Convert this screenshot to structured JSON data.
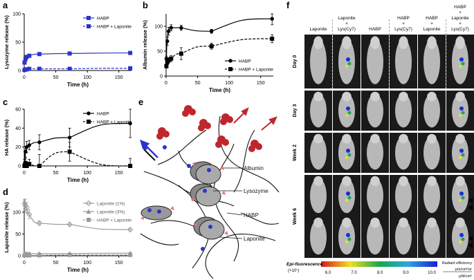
{
  "panels": {
    "a": {
      "label": "a"
    },
    "b": {
      "label": "b"
    },
    "c": {
      "label": "c"
    },
    "d": {
      "label": "d"
    },
    "e": {
      "label": "e"
    },
    "f": {
      "label": "f"
    }
  },
  "chart_data": [
    {
      "id": "a",
      "type": "line",
      "ylabel": "Lysozyme release (%)",
      "xlabel": "Time (h)",
      "xlim": [
        0,
        170
      ],
      "ylim": [
        0,
        100
      ],
      "xticks": [
        "0",
        "50",
        "100",
        "150"
      ],
      "yticks": [
        "0",
        "50",
        "100"
      ],
      "legend_position": "top-right",
      "colors": {
        "primary": "#2b35c9"
      },
      "series": [
        {
          "name": "HABP",
          "style": "solid",
          "color": "#2b35c9",
          "points": [
            [
              0.5,
              14
            ],
            [
              2,
              20
            ],
            [
              4,
              24
            ],
            [
              8,
              26
            ],
            [
              24,
              29
            ],
            [
              72,
              30
            ],
            [
              168,
              31
            ]
          ]
        },
        {
          "name": "HABP + Laponite",
          "style": "dashed",
          "color": "#2b35c9",
          "points": [
            [
              0.5,
              1
            ],
            [
              2,
              2
            ],
            [
              4,
              2
            ],
            [
              8,
              3
            ],
            [
              24,
              3
            ],
            [
              72,
              3
            ],
            [
              168,
              4
            ]
          ]
        }
      ]
    },
    {
      "id": "b",
      "type": "line",
      "ylabel": "Albumin release (%)",
      "xlabel": "Time (h)",
      "xlim": [
        0,
        170
      ],
      "ylim": [
        0,
        125
      ],
      "xticks": [
        "0",
        "50",
        "100",
        "150"
      ],
      "yticks": [
        "0",
        "50",
        "100"
      ],
      "legend_position": "bottom-right",
      "series": [
        {
          "name": "HABP",
          "style": "solid",
          "color": "#000000",
          "points": [
            [
              0.5,
              35
            ],
            [
              2,
              70
            ],
            [
              4,
              90
            ],
            [
              8,
              97
            ],
            [
              24,
              97
            ],
            [
              72,
              90
            ],
            [
              168,
              115
            ]
          ],
          "errors": [
            5,
            8,
            8,
            6,
            5,
            4,
            12
          ]
        },
        {
          "name": "HABP + Laponite",
          "style": "dashed",
          "color": "#000000",
          "points": [
            [
              0.5,
              20
            ],
            [
              2,
              28
            ],
            [
              4,
              32
            ],
            [
              8,
              35
            ],
            [
              24,
              45
            ],
            [
              72,
              60
            ],
            [
              168,
              75
            ]
          ],
          "errors": [
            4,
            5,
            5,
            6,
            12,
            6,
            8
          ]
        }
      ]
    },
    {
      "id": "c",
      "type": "line",
      "ylabel": "HA release (%)",
      "xlabel": "Time (h)",
      "xlim": [
        0,
        170
      ],
      "ylim": [
        0,
        60
      ],
      "xticks": [
        "0",
        "50",
        "100",
        "150"
      ],
      "yticks": [
        "0",
        "20",
        "40",
        "60"
      ],
      "legend_position": "top-right",
      "series": [
        {
          "name": "HABP",
          "style": "solid",
          "color": "#000000",
          "points": [
            [
              0.5,
              2
            ],
            [
              2,
              15
            ],
            [
              4,
              20
            ],
            [
              8,
              22
            ],
            [
              24,
              25
            ],
            [
              72,
              30
            ],
            [
              168,
              45
            ]
          ],
          "errors": [
            5,
            6,
            6,
            5,
            8,
            10,
            15
          ]
        },
        {
          "name": "HABP + Laponite",
          "style": "dashed",
          "color": "#000000",
          "points": [
            [
              0.5,
              -2
            ],
            [
              2,
              3
            ],
            [
              4,
              -2
            ],
            [
              8,
              2
            ],
            [
              24,
              0
            ],
            [
              72,
              15
            ],
            [
              168,
              0
            ]
          ],
          "errors": [
            5,
            5,
            5,
            5,
            12,
            10,
            8
          ]
        }
      ]
    },
    {
      "id": "d",
      "type": "line",
      "ylabel": "Laponite release (%)",
      "xlabel": "Time (h)",
      "xlim": [
        0,
        170
      ],
      "ylim": [
        0,
        130
      ],
      "xticks": [
        "0",
        "50",
        "100",
        "150"
      ],
      "yticks": [
        "0",
        "50",
        "100"
      ],
      "legend_position": "top-right",
      "series": [
        {
          "name": "Laponite (1%)",
          "style": "solid",
          "color": "#9a9a9a",
          "marker": "diamond",
          "points": [
            [
              0.5,
              120
            ],
            [
              2,
              115
            ],
            [
              4,
              110
            ],
            [
              8,
              95
            ],
            [
              24,
              75
            ],
            [
              72,
              72
            ],
            [
              168,
              60
            ]
          ],
          "errors": [
            15,
            15,
            12,
            10,
            5,
            4,
            3
          ]
        },
        {
          "name": "Laponite (3%)",
          "style": "solid",
          "color": "#9a9a9a",
          "marker": "triangle",
          "points": [
            [
              0.5,
              5
            ],
            [
              2,
              5
            ],
            [
              4,
              5
            ],
            [
              8,
              5
            ],
            [
              24,
              5
            ],
            [
              72,
              5
            ],
            [
              168,
              6
            ]
          ],
          "errors": [
            2,
            2,
            2,
            2,
            2,
            2,
            2
          ]
        },
        {
          "name": "HABP + Laponite",
          "style": "dashed",
          "color": "#9a9a9a",
          "marker": "square",
          "points": [
            [
              0.5,
              1
            ],
            [
              2,
              1
            ],
            [
              4,
              1
            ],
            [
              8,
              1
            ],
            [
              24,
              1
            ],
            [
              72,
              2
            ],
            [
              168,
              2
            ]
          ],
          "errors": [
            1,
            1,
            1,
            1,
            1,
            1,
            1
          ]
        }
      ]
    }
  ],
  "schematic": {
    "labels": [
      "Albumin",
      "Lysozyme",
      "HABP",
      "Laponite"
    ]
  },
  "imaging": {
    "columns": [
      "Laponite",
      "Laponite\n+\nLys(Cy7)",
      "HABP",
      "HABP\n+\nLys(Cy7)",
      "HABP\n+\nLaponite",
      "HABP\n+\nLaponite\n+\nLys(Cy7)"
    ],
    "rows": [
      "Day 0",
      "Day 3",
      "Week 2",
      "Week 6"
    ],
    "colorbar": {
      "title": "Epi-fluorescence",
      "exponent": "(×10⁷)",
      "ticks": [
        "6.0",
        "7.0",
        "8.0",
        "9.0",
        "10.0"
      ],
      "unit_line1": "Radiant efficiency",
      "unit_line2": "p/s/cm²/sr",
      "unit_line3": "μW/cm²"
    }
  }
}
